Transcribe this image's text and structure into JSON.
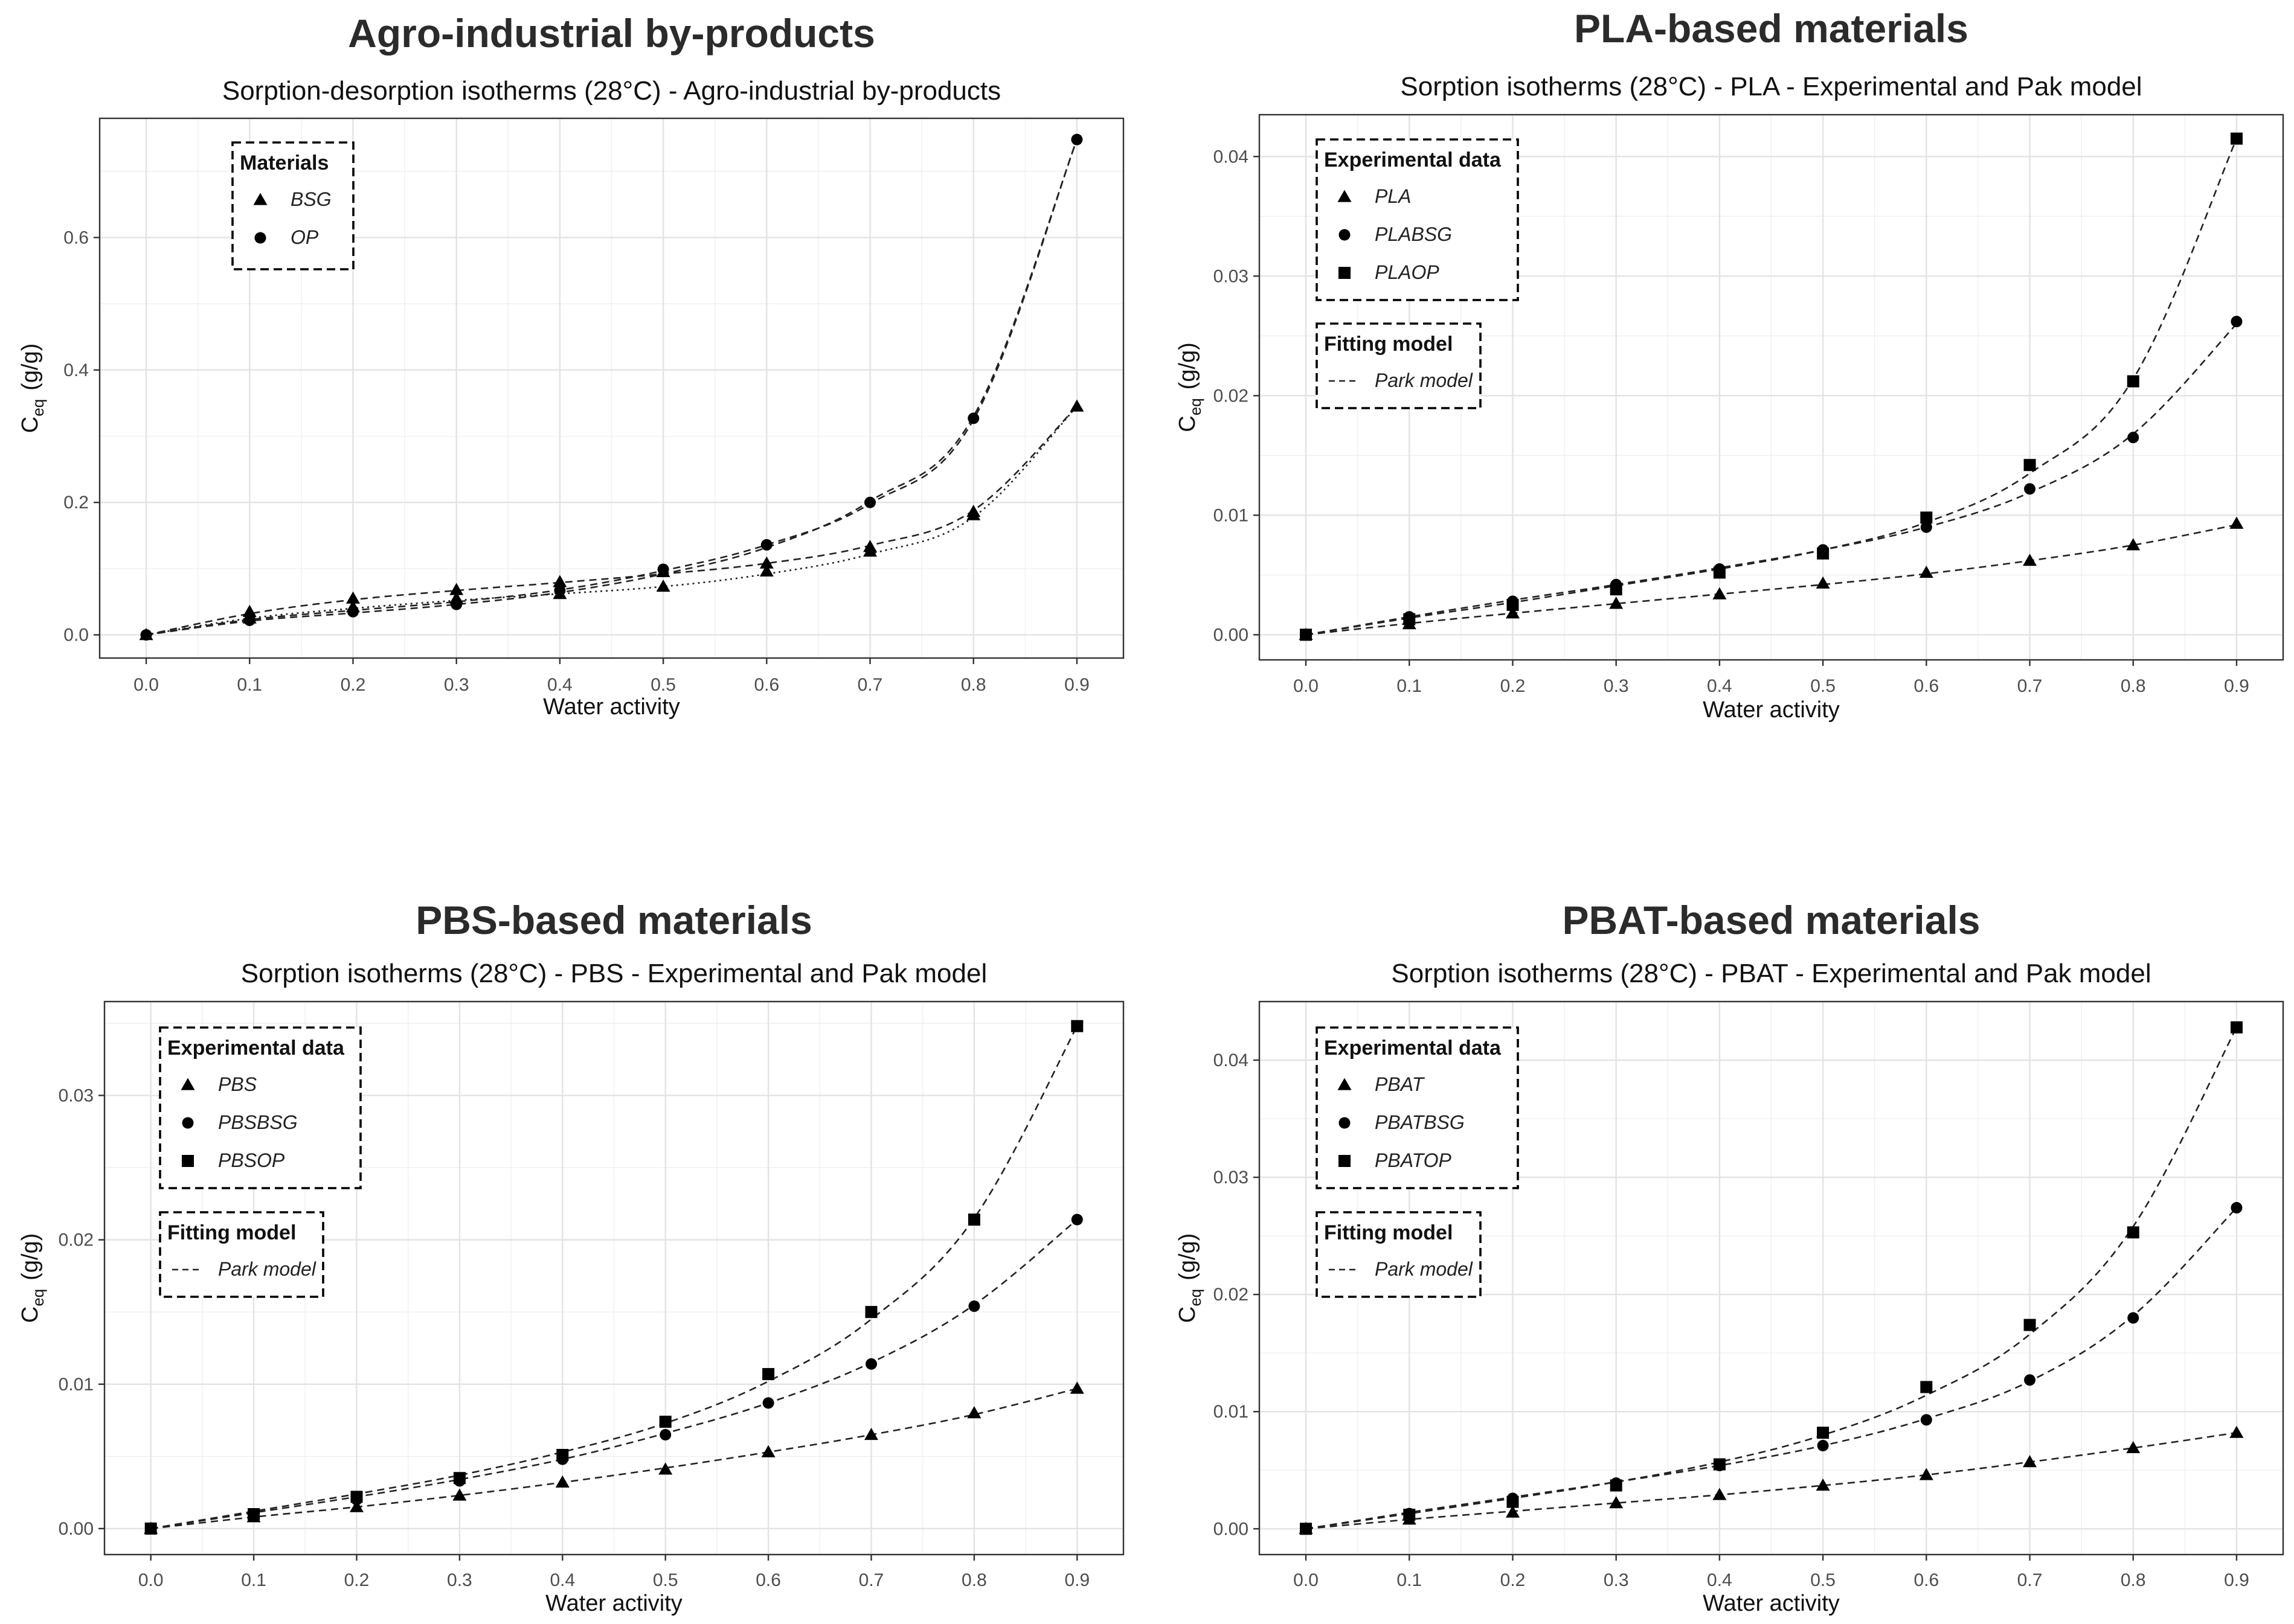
{
  "chart_data": [
    {
      "type": "scatter",
      "heading": "Agro-industrial by-products",
      "title": "Sorption-desorption isotherms (28°C) - Agro-industrial by-products",
      "xlabel": "Water activity",
      "ylabel_main": "C",
      "ylabel_sub": "eq",
      "ylabel_unit": "(g/g)",
      "xlim": [
        -0.045,
        0.945
      ],
      "ylim": [
        -0.035,
        0.78
      ],
      "xticks": [
        0.0,
        0.1,
        0.2,
        0.3,
        0.4,
        0.5,
        0.6,
        0.7,
        0.8,
        0.9
      ],
      "xtick_labels": [
        "0.0",
        "0.1",
        "0.2",
        "0.3",
        "0.4",
        "0.5",
        "0.6",
        "0.7",
        "0.8",
        "0.9"
      ],
      "yticks": [
        0.0,
        0.2,
        0.4,
        0.6
      ],
      "ytick_labels": [
        "0.0",
        "0.2",
        "0.4",
        "0.6"
      ],
      "grid": true,
      "legend_position": "top-left",
      "legends": [
        {
          "title": "Materials",
          "entries": [
            {
              "label": "BSG",
              "shape": "triangle"
            },
            {
              "label": "OP",
              "shape": "circle"
            }
          ]
        }
      ],
      "series": [
        {
          "label": "BSG",
          "shape": "triangle",
          "x": [
            0.0,
            0.1,
            0.2,
            0.3,
            0.4,
            0.5,
            0.6,
            0.7,
            0.8,
            0.9
          ],
          "y": [
            0.0,
            0.035,
            0.055,
            0.068,
            0.08,
            0.095,
            0.108,
            0.133,
            0.186,
            0.345
          ]
        },
        {
          "label": "BSG",
          "shape": "triangle",
          "x": [
            0.1,
            0.2,
            0.3,
            0.4,
            0.5,
            0.6,
            0.7,
            0.8
          ],
          "y": [
            0.025,
            0.042,
            0.055,
            0.062,
            0.073,
            0.096,
            0.126,
            0.181
          ]
        },
        {
          "label": "OP",
          "shape": "circle",
          "x": [
            0.0,
            0.1,
            0.2,
            0.3,
            0.4,
            0.5,
            0.6,
            0.7,
            0.8,
            0.9
          ],
          "y": [
            0.0,
            0.022,
            0.035,
            0.046,
            0.067,
            0.099,
            0.136,
            0.2,
            0.327,
            0.748
          ]
        }
      ],
      "curves": [
        {
          "style": "dashed",
          "x": [
            0,
            0.1,
            0.2,
            0.3,
            0.4,
            0.5,
            0.6,
            0.7,
            0.8,
            0.9
          ],
          "y": [
            0,
            0.032,
            0.053,
            0.067,
            0.079,
            0.092,
            0.108,
            0.135,
            0.188,
            0.345
          ]
        },
        {
          "style": "dotted",
          "x": [
            0,
            0.1,
            0.2,
            0.3,
            0.4,
            0.5,
            0.6,
            0.7,
            0.8,
            0.9
          ],
          "y": [
            0,
            0.025,
            0.04,
            0.052,
            0.062,
            0.073,
            0.092,
            0.122,
            0.178,
            0.345
          ]
        },
        {
          "style": "dashed",
          "x": [
            0,
            0.1,
            0.2,
            0.3,
            0.4,
            0.5,
            0.6,
            0.7,
            0.8,
            0.9
          ],
          "y": [
            0,
            0.023,
            0.037,
            0.05,
            0.068,
            0.097,
            0.136,
            0.198,
            0.325,
            0.748
          ]
        },
        {
          "style": "dashed",
          "x": [
            0,
            0.1,
            0.2,
            0.3,
            0.4,
            0.5,
            0.6,
            0.7,
            0.8,
            0.9
          ],
          "y": [
            0,
            0.021,
            0.033,
            0.046,
            0.064,
            0.092,
            0.132,
            0.202,
            0.33,
            0.748
          ]
        }
      ]
    },
    {
      "type": "scatter",
      "heading": "PLA-based materials",
      "title": "Sorption isotherms (28°C) - PLA - Experimental and Pak model",
      "xlabel": "Water activity",
      "ylabel_main": "C",
      "ylabel_sub": "eq",
      "ylabel_unit": "(g/g)",
      "xlim": [
        -0.045,
        0.945
      ],
      "ylim": [
        -0.0021,
        0.0435
      ],
      "xticks": [
        0.0,
        0.1,
        0.2,
        0.3,
        0.4,
        0.5,
        0.6,
        0.7,
        0.8,
        0.9
      ],
      "xtick_labels": [
        "0.0",
        "0.1",
        "0.2",
        "0.3",
        "0.4",
        "0.5",
        "0.6",
        "0.7",
        "0.8",
        "0.9"
      ],
      "yticks": [
        0.0,
        0.01,
        0.02,
        0.03,
        0.04
      ],
      "ytick_labels": [
        "0.00",
        "0.01",
        "0.02",
        "0.03",
        "0.04"
      ],
      "grid": true,
      "legend_position": "top-left",
      "legends": [
        {
          "title": "Experimental data",
          "entries": [
            {
              "label": "PLA",
              "shape": "triangle"
            },
            {
              "label": "PLABSG",
              "shape": "circle"
            },
            {
              "label": "PLAOP",
              "shape": "square"
            }
          ]
        },
        {
          "title": "Fitting model",
          "entries": [
            {
              "label": "Park model",
              "shape": "dashed-line"
            }
          ]
        }
      ],
      "series": [
        {
          "label": "PLA",
          "shape": "triangle",
          "x": [
            0.0,
            0.1,
            0.2,
            0.3,
            0.4,
            0.5,
            0.6,
            0.7,
            0.8,
            0.9
          ],
          "y": [
            0.0,
            0.0009,
            0.0018,
            0.0026,
            0.0034,
            0.0043,
            0.0052,
            0.0062,
            0.0075,
            0.0093
          ]
        },
        {
          "label": "PLABSG",
          "shape": "circle",
          "x": [
            0.0,
            0.1,
            0.2,
            0.3,
            0.4,
            0.5,
            0.6,
            0.7,
            0.8,
            0.9
          ],
          "y": [
            0.0,
            0.0015,
            0.0028,
            0.0042,
            0.0055,
            0.0071,
            0.009,
            0.0122,
            0.0165,
            0.0262
          ]
        },
        {
          "label": "PLAOP",
          "shape": "square",
          "x": [
            0.0,
            0.1,
            0.2,
            0.3,
            0.4,
            0.5,
            0.6,
            0.7,
            0.8,
            0.9
          ],
          "y": [
            0.0,
            0.0013,
            0.0025,
            0.0038,
            0.0052,
            0.0068,
            0.0098,
            0.0142,
            0.0212,
            0.0415
          ]
        }
      ],
      "curves": [
        {
          "style": "dashed",
          "x": [
            0,
            0.1,
            0.2,
            0.3,
            0.4,
            0.5,
            0.6,
            0.7,
            0.8,
            0.9
          ],
          "y": [
            0,
            0.00095,
            0.0018,
            0.0026,
            0.0034,
            0.0042,
            0.0051,
            0.0062,
            0.0075,
            0.0092
          ]
        },
        {
          "style": "dashed",
          "x": [
            0,
            0.1,
            0.2,
            0.3,
            0.4,
            0.5,
            0.6,
            0.7,
            0.8,
            0.9
          ],
          "y": [
            0,
            0.0015,
            0.0029,
            0.0042,
            0.0056,
            0.0071,
            0.009,
            0.0119,
            0.0168,
            0.026
          ]
        },
        {
          "style": "dashed",
          "x": [
            0,
            0.1,
            0.2,
            0.3,
            0.4,
            0.5,
            0.6,
            0.7,
            0.8,
            0.9
          ],
          "y": [
            0,
            0.0014,
            0.0027,
            0.0041,
            0.0055,
            0.0071,
            0.0094,
            0.0135,
            0.0214,
            0.0415
          ]
        }
      ]
    },
    {
      "type": "scatter",
      "heading": "PBS-based materials",
      "title": "Sorption isotherms (28°C) - PBS - Experimental and Pak model",
      "xlabel": "Water activity",
      "ylabel_main": "C",
      "ylabel_sub": "eq",
      "ylabel_unit": "(g/g)",
      "xlim": [
        -0.045,
        0.945
      ],
      "ylim": [
        -0.0018,
        0.0365
      ],
      "xticks": [
        0.0,
        0.1,
        0.2,
        0.3,
        0.4,
        0.5,
        0.6,
        0.7,
        0.8,
        0.9
      ],
      "xtick_labels": [
        "0.0",
        "0.1",
        "0.2",
        "0.3",
        "0.4",
        "0.5",
        "0.6",
        "0.7",
        "0.8",
        "0.9"
      ],
      "yticks": [
        0.0,
        0.01,
        0.02,
        0.03
      ],
      "ytick_labels": [
        "0.00",
        "0.01",
        "0.02",
        "0.03"
      ],
      "grid": true,
      "legend_position": "top-left",
      "legends": [
        {
          "title": "Experimental data",
          "entries": [
            {
              "label": "PBS",
              "shape": "triangle"
            },
            {
              "label": "PBSBSG",
              "shape": "circle"
            },
            {
              "label": "PBSOP",
              "shape": "square"
            }
          ]
        },
        {
          "title": "Fitting model",
          "entries": [
            {
              "label": "Park model",
              "shape": "dashed-line"
            }
          ]
        }
      ],
      "series": [
        {
          "label": "PBS",
          "shape": "triangle",
          "x": [
            0.0,
            0.1,
            0.2,
            0.3,
            0.4,
            0.5,
            0.6,
            0.7,
            0.8,
            0.9
          ],
          "y": [
            0.0,
            0.0008,
            0.0015,
            0.0023,
            0.0032,
            0.0041,
            0.0053,
            0.0065,
            0.008,
            0.0097
          ]
        },
        {
          "label": "PBSBSG",
          "shape": "circle",
          "x": [
            0.0,
            0.1,
            0.2,
            0.3,
            0.4,
            0.5,
            0.6,
            0.7,
            0.8,
            0.9
          ],
          "y": [
            0.0,
            0.001,
            0.002,
            0.0033,
            0.0048,
            0.0065,
            0.0087,
            0.0114,
            0.0154,
            0.0214
          ]
        },
        {
          "label": "PBSOP",
          "shape": "square",
          "x": [
            0.0,
            0.1,
            0.2,
            0.3,
            0.4,
            0.5,
            0.6,
            0.7,
            0.8,
            0.9
          ],
          "y": [
            0.0,
            0.001,
            0.0022,
            0.0035,
            0.0051,
            0.0074,
            0.0107,
            0.015,
            0.0214,
            0.0348
          ]
        }
      ],
      "curves": [
        {
          "style": "dashed",
          "x": [
            0,
            0.1,
            0.2,
            0.3,
            0.4,
            0.5,
            0.6,
            0.7,
            0.8,
            0.9
          ],
          "y": [
            0,
            0.0008,
            0.0015,
            0.0023,
            0.0032,
            0.0042,
            0.0053,
            0.0065,
            0.0079,
            0.0097
          ]
        },
        {
          "style": "dashed",
          "x": [
            0,
            0.1,
            0.2,
            0.3,
            0.4,
            0.5,
            0.6,
            0.7,
            0.8,
            0.9
          ],
          "y": [
            0,
            0.0011,
            0.0022,
            0.0034,
            0.0048,
            0.0066,
            0.0087,
            0.0115,
            0.0155,
            0.0214
          ]
        },
        {
          "style": "dashed",
          "x": [
            0,
            0.1,
            0.2,
            0.3,
            0.4,
            0.5,
            0.6,
            0.7,
            0.8,
            0.9
          ],
          "y": [
            0,
            0.0012,
            0.0024,
            0.0037,
            0.0053,
            0.0073,
            0.0102,
            0.0145,
            0.0215,
            0.0348
          ]
        }
      ]
    },
    {
      "type": "scatter",
      "heading": "PBAT-based materials",
      "title": "Sorption isotherms (28°C) - PBAT - Experimental and Pak model",
      "xlabel": "Water activity",
      "ylabel_main": "C",
      "ylabel_sub": "eq",
      "ylabel_unit": "(g/g)",
      "xlim": [
        -0.045,
        0.945
      ],
      "ylim": [
        -0.0022,
        0.045
      ],
      "xticks": [
        0.0,
        0.1,
        0.2,
        0.3,
        0.4,
        0.5,
        0.6,
        0.7,
        0.8,
        0.9
      ],
      "xtick_labels": [
        "0.0",
        "0.1",
        "0.2",
        "0.3",
        "0.4",
        "0.5",
        "0.6",
        "0.7",
        "0.8",
        "0.9"
      ],
      "yticks": [
        0.0,
        0.01,
        0.02,
        0.03,
        0.04
      ],
      "ytick_labels": [
        "0.00",
        "0.01",
        "0.02",
        "0.03",
        "0.04"
      ],
      "grid": true,
      "legend_position": "top-left",
      "legends": [
        {
          "title": "Experimental data",
          "entries": [
            {
              "label": "PBAT",
              "shape": "triangle"
            },
            {
              "label": "PBATBSG",
              "shape": "circle"
            },
            {
              "label": "PBATOP",
              "shape": "square"
            }
          ]
        },
        {
          "title": "Fitting model",
          "entries": [
            {
              "label": "Park model",
              "shape": "dashed-line"
            }
          ]
        }
      ],
      "series": [
        {
          "label": "PBAT",
          "shape": "triangle",
          "x": [
            0.0,
            0.1,
            0.2,
            0.3,
            0.4,
            0.5,
            0.6,
            0.7,
            0.8,
            0.9
          ],
          "y": [
            0.0,
            0.0008,
            0.0014,
            0.0022,
            0.0029,
            0.0037,
            0.0046,
            0.0057,
            0.0069,
            0.0082
          ]
        },
        {
          "label": "PBATBSG",
          "shape": "circle",
          "x": [
            0.0,
            0.1,
            0.2,
            0.3,
            0.4,
            0.5,
            0.6,
            0.7,
            0.8,
            0.9
          ],
          "y": [
            0.0,
            0.0013,
            0.0026,
            0.0039,
            0.0054,
            0.0071,
            0.0093,
            0.0127,
            0.018,
            0.0274
          ]
        },
        {
          "label": "PBATOP",
          "shape": "square",
          "x": [
            0.0,
            0.1,
            0.2,
            0.3,
            0.4,
            0.5,
            0.6,
            0.7,
            0.8,
            0.9
          ],
          "y": [
            0.0,
            0.0012,
            0.0023,
            0.0037,
            0.0055,
            0.0082,
            0.0121,
            0.0174,
            0.0253,
            0.0428
          ]
        }
      ],
      "curves": [
        {
          "style": "dashed",
          "x": [
            0,
            0.1,
            0.2,
            0.3,
            0.4,
            0.5,
            0.6,
            0.7,
            0.8,
            0.9
          ],
          "y": [
            0,
            0.0008,
            0.0015,
            0.0022,
            0.0029,
            0.0037,
            0.0046,
            0.0057,
            0.0069,
            0.0082
          ]
        },
        {
          "style": "dashed",
          "x": [
            0,
            0.1,
            0.2,
            0.3,
            0.4,
            0.5,
            0.6,
            0.7,
            0.8,
            0.9
          ],
          "y": [
            0,
            0.0014,
            0.0027,
            0.004,
            0.0054,
            0.0071,
            0.0094,
            0.0126,
            0.0182,
            0.0274
          ]
        },
        {
          "style": "dashed",
          "x": [
            0,
            0.1,
            0.2,
            0.3,
            0.4,
            0.5,
            0.6,
            0.7,
            0.8,
            0.9
          ],
          "y": [
            0,
            0.0013,
            0.0026,
            0.004,
            0.0057,
            0.008,
            0.0114,
            0.0166,
            0.0258,
            0.0428
          ]
        }
      ]
    }
  ]
}
